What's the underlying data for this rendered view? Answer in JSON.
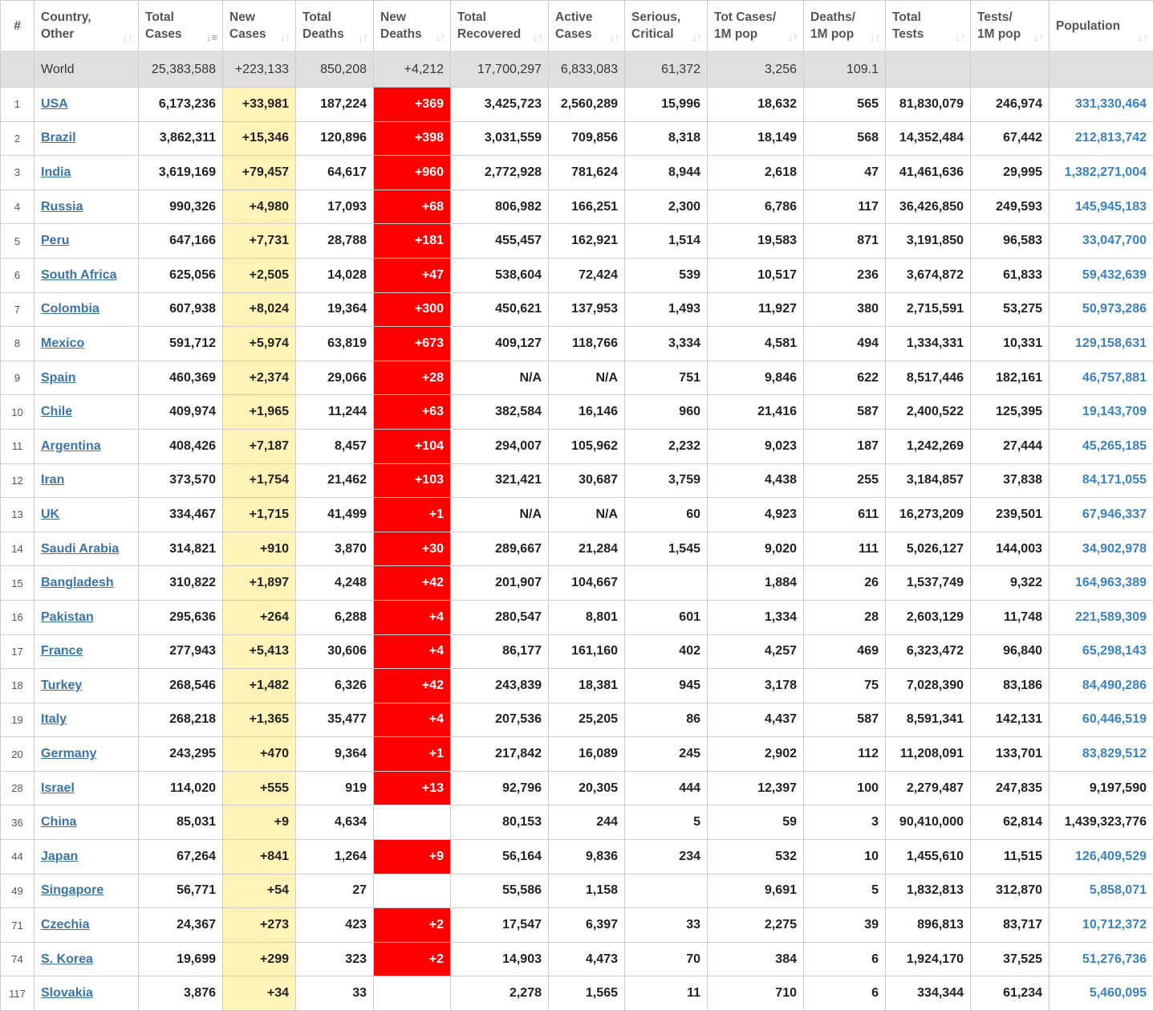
{
  "columns": [
    {
      "label": "#",
      "sort": false
    },
    {
      "label": [
        "Country,",
        "Other"
      ],
      "sort": true
    },
    {
      "label": [
        "Total",
        "Cases"
      ],
      "sort": true,
      "active": true
    },
    {
      "label": [
        "New",
        "Cases"
      ],
      "sort": true
    },
    {
      "label": [
        "Total",
        "Deaths"
      ],
      "sort": true
    },
    {
      "label": [
        "New",
        "Deaths"
      ],
      "sort": true
    },
    {
      "label": [
        "Total",
        "Recovered"
      ],
      "sort": true
    },
    {
      "label": [
        "Active",
        "Cases"
      ],
      "sort": true
    },
    {
      "label": [
        "Serious,",
        "Critical"
      ],
      "sort": true
    },
    {
      "label": [
        "Tot Cases/",
        "1M pop"
      ],
      "sort": true
    },
    {
      "label": [
        "Deaths/",
        "1M pop"
      ],
      "sort": true
    },
    {
      "label": [
        "Total",
        "Tests"
      ],
      "sort": true
    },
    {
      "label": [
        "Tests/",
        "1M pop"
      ],
      "sort": true
    },
    {
      "label": [
        "Population"
      ],
      "sort": true
    }
  ],
  "colors": {
    "new_cases_bg": "#fff3b8",
    "new_deaths_bg": "#ff0000",
    "link": "#3a74a8",
    "world_bg": "#dfdfdf"
  },
  "world": [
    "",
    "World",
    "25,383,588",
    "+223,133",
    "850,208",
    "+4,212",
    "17,700,297",
    "6,833,083",
    "61,372",
    "3,256",
    "109.1",
    "",
    "",
    ""
  ],
  "rows": [
    [
      "1",
      "USA",
      "6,173,236",
      "+33,981",
      "187,224",
      "+369",
      "3,425,723",
      "2,560,289",
      "15,996",
      "18,632",
      "565",
      "81,830,079",
      "246,974",
      "331,330,464",
      true
    ],
    [
      "2",
      "Brazil",
      "3,862,311",
      "+15,346",
      "120,896",
      "+398",
      "3,031,559",
      "709,856",
      "8,318",
      "18,149",
      "568",
      "14,352,484",
      "67,442",
      "212,813,742",
      true
    ],
    [
      "3",
      "India",
      "3,619,169",
      "+79,457",
      "64,617",
      "+960",
      "2,772,928",
      "781,624",
      "8,944",
      "2,618",
      "47",
      "41,461,636",
      "29,995",
      "1,382,271,004",
      true
    ],
    [
      "4",
      "Russia",
      "990,326",
      "+4,980",
      "17,093",
      "+68",
      "806,982",
      "166,251",
      "2,300",
      "6,786",
      "117",
      "36,426,850",
      "249,593",
      "145,945,183",
      true
    ],
    [
      "5",
      "Peru",
      "647,166",
      "+7,731",
      "28,788",
      "+181",
      "455,457",
      "162,921",
      "1,514",
      "19,583",
      "871",
      "3,191,850",
      "96,583",
      "33,047,700",
      true
    ],
    [
      "6",
      "South Africa",
      "625,056",
      "+2,505",
      "14,028",
      "+47",
      "538,604",
      "72,424",
      "539",
      "10,517",
      "236",
      "3,674,872",
      "61,833",
      "59,432,639",
      true
    ],
    [
      "7",
      "Colombia",
      "607,938",
      "+8,024",
      "19,364",
      "+300",
      "450,621",
      "137,953",
      "1,493",
      "11,927",
      "380",
      "2,715,591",
      "53,275",
      "50,973,286",
      true
    ],
    [
      "8",
      "Mexico",
      "591,712",
      "+5,974",
      "63,819",
      "+673",
      "409,127",
      "118,766",
      "3,334",
      "4,581",
      "494",
      "1,334,331",
      "10,331",
      "129,158,631",
      true
    ],
    [
      "9",
      "Spain",
      "460,369",
      "+2,374",
      "29,066",
      "+28",
      "N/A",
      "N/A",
      "751",
      "9,846",
      "622",
      "8,517,446",
      "182,161",
      "46,757,881",
      true
    ],
    [
      "10",
      "Chile",
      "409,974",
      "+1,965",
      "11,244",
      "+63",
      "382,584",
      "16,146",
      "960",
      "21,416",
      "587",
      "2,400,522",
      "125,395",
      "19,143,709",
      true
    ],
    [
      "11",
      "Argentina",
      "408,426",
      "+7,187",
      "8,457",
      "+104",
      "294,007",
      "105,962",
      "2,232",
      "9,023",
      "187",
      "1,242,269",
      "27,444",
      "45,265,185",
      true
    ],
    [
      "12",
      "Iran",
      "373,570",
      "+1,754",
      "21,462",
      "+103",
      "321,421",
      "30,687",
      "3,759",
      "4,438",
      "255",
      "3,184,857",
      "37,838",
      "84,171,055",
      true
    ],
    [
      "13",
      "UK",
      "334,467",
      "+1,715",
      "41,499",
      "+1",
      "N/A",
      "N/A",
      "60",
      "4,923",
      "611",
      "16,273,209",
      "239,501",
      "67,946,337",
      true
    ],
    [
      "14",
      "Saudi Arabia",
      "314,821",
      "+910",
      "3,870",
      "+30",
      "289,667",
      "21,284",
      "1,545",
      "9,020",
      "111",
      "5,026,127",
      "144,003",
      "34,902,978",
      true
    ],
    [
      "15",
      "Bangladesh",
      "310,822",
      "+1,897",
      "4,248",
      "+42",
      "201,907",
      "104,667",
      "",
      "1,884",
      "26",
      "1,537,749",
      "9,322",
      "164,963,389",
      true
    ],
    [
      "16",
      "Pakistan",
      "295,636",
      "+264",
      "6,288",
      "+4",
      "280,547",
      "8,801",
      "601",
      "1,334",
      "28",
      "2,603,129",
      "11,748",
      "221,589,309",
      true
    ],
    [
      "17",
      "France",
      "277,943",
      "+5,413",
      "30,606",
      "+4",
      "86,177",
      "161,160",
      "402",
      "4,257",
      "469",
      "6,323,472",
      "96,840",
      "65,298,143",
      true
    ],
    [
      "18",
      "Turkey",
      "268,546",
      "+1,482",
      "6,326",
      "+42",
      "243,839",
      "18,381",
      "945",
      "3,178",
      "75",
      "7,028,390",
      "83,186",
      "84,490,286",
      true
    ],
    [
      "19",
      "Italy",
      "268,218",
      "+1,365",
      "35,477",
      "+4",
      "207,536",
      "25,205",
      "86",
      "4,437",
      "587",
      "8,591,341",
      "142,131",
      "60,446,519",
      true
    ],
    [
      "20",
      "Germany",
      "243,295",
      "+470",
      "9,364",
      "+1",
      "217,842",
      "16,089",
      "245",
      "2,902",
      "112",
      "11,208,091",
      "133,701",
      "83,829,512",
      true
    ],
    [
      "28",
      "Israel",
      "114,020",
      "+555",
      "919",
      "+13",
      "92,796",
      "20,305",
      "444",
      "12,397",
      "100",
      "2,279,487",
      "247,835",
      "9,197,590",
      false
    ],
    [
      "36",
      "China",
      "85,031",
      "+9",
      "4,634",
      "",
      "80,153",
      "244",
      "5",
      "59",
      "3",
      "90,410,000",
      "62,814",
      "1,439,323,776",
      false
    ],
    [
      "44",
      "Japan",
      "67,264",
      "+841",
      "1,264",
      "+9",
      "56,164",
      "9,836",
      "234",
      "532",
      "10",
      "1,455,610",
      "11,515",
      "126,409,529",
      true
    ],
    [
      "49",
      "Singapore",
      "56,771",
      "+54",
      "27",
      "",
      "55,586",
      "1,158",
      "",
      "9,691",
      "5",
      "1,832,813",
      "312,870",
      "5,858,071",
      true
    ],
    [
      "71",
      "Czechia",
      "24,367",
      "+273",
      "423",
      "+2",
      "17,547",
      "6,397",
      "33",
      "2,275",
      "39",
      "896,813",
      "83,717",
      "10,712,372",
      true
    ],
    [
      "74",
      "S. Korea",
      "19,699",
      "+299",
      "323",
      "+2",
      "14,903",
      "4,473",
      "70",
      "384",
      "6",
      "1,924,170",
      "37,525",
      "51,276,736",
      true
    ],
    [
      "117",
      "Slovakia",
      "3,876",
      "+34",
      "33",
      "",
      "2,278",
      "1,565",
      "11",
      "710",
      "6",
      "334,344",
      "61,234",
      "5,460,095",
      true
    ]
  ]
}
